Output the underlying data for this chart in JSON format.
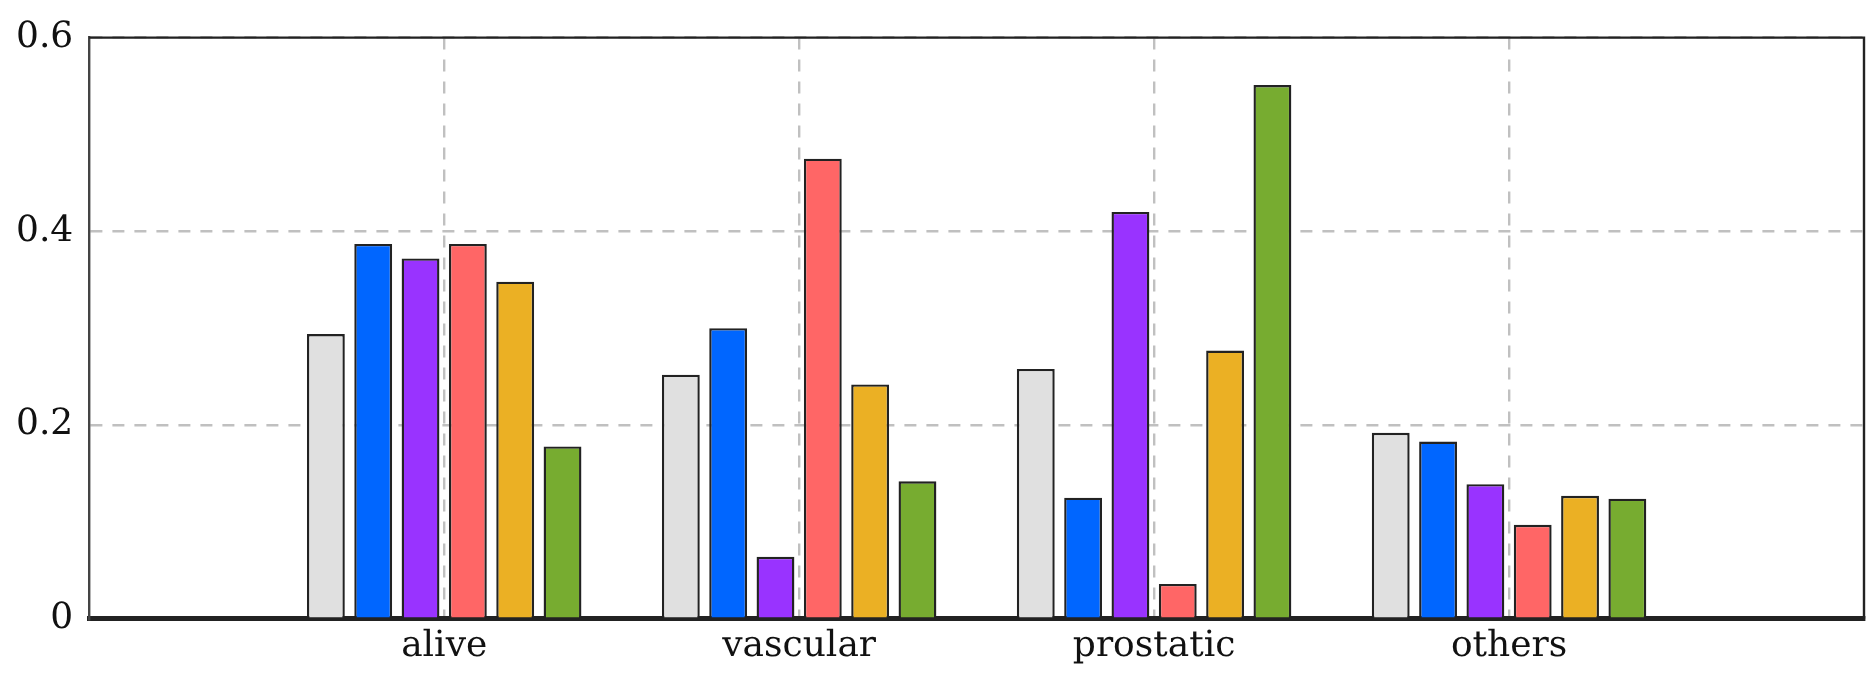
{
  "chart_data": {
    "type": "bar",
    "categories": [
      "alive",
      "vascular",
      "prostatic",
      "others"
    ],
    "series": [
      {
        "color": "#e0e0e0",
        "values": [
          0.294,
          0.252,
          0.258,
          0.192
        ]
      },
      {
        "color": "#0066ff",
        "values": [
          0.387,
          0.3,
          0.125,
          0.183
        ]
      },
      {
        "color": "#9933ff",
        "values": [
          0.372,
          0.064,
          0.42,
          0.139
        ]
      },
      {
        "color": "#ff6666",
        "values": [
          0.387,
          0.475,
          0.036,
          0.097
        ]
      },
      {
        "color": "#ebb024",
        "values": [
          0.348,
          0.242,
          0.277,
          0.127
        ]
      },
      {
        "color": "#77ac30",
        "values": [
          0.178,
          0.142,
          0.551,
          0.124
        ]
      }
    ],
    "ylim": [
      0,
      0.6
    ],
    "yticks": [
      0,
      0.2,
      0.4,
      0.6
    ],
    "grid": true,
    "legend": false
  }
}
